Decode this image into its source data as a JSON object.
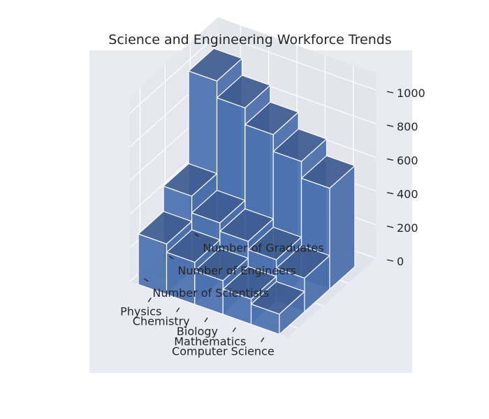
{
  "chart_data": {
    "type": "bar3d",
    "title": "Science and Engineering Workforce Trends",
    "categories": [
      "Computer Science",
      "Mathematics",
      "Biology",
      "Chemistry",
      "Physics"
    ],
    "series": [
      {
        "name": "Number of Scientists",
        "values": [
          120,
          150,
          200,
          250,
          300
        ]
      },
      {
        "name": "Number of Engineers",
        "values": [
          200,
          250,
          300,
          350,
          450
        ]
      },
      {
        "name": "Number of Graduates",
        "values": [
          600,
          700,
          800,
          900,
          1000
        ]
      }
    ],
    "zlim": [
      0,
      1000
    ],
    "z_ticks": [
      0,
      200,
      400,
      600,
      800,
      1000
    ],
    "grid": true,
    "colors": {
      "bar_face": "#4c72b0",
      "bar_edge": "#ffffff",
      "pane": "#eaeaf2",
      "grid": "#ffffff",
      "text": "#262626"
    }
  }
}
